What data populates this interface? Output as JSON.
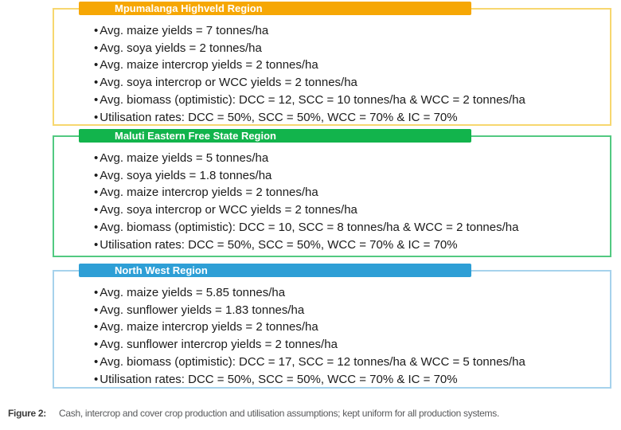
{
  "ui": {
    "bullet_char": "•"
  },
  "figure": {
    "caption_label": "Figure 2:",
    "caption_text": "Cash, intercrop and cover crop production and utilisation assumptions; kept uniform for all production systems."
  },
  "regions": [
    {
      "name": "Mpumalanga Highveld Region",
      "accent_color": "#F6A704",
      "border_color": "#F7D76F",
      "bullets": [
        "Avg. maize yields = 7 tonnes/ha",
        "Avg. soya yields = 2 tonnes/ha",
        "Avg. maize intercrop yields = 2 tonnes/ha",
        "Avg. soya intercrop or WCC yields = 2 tonnes/ha",
        "Avg. biomass (optimistic): DCC = 12, SCC = 10 tonnes/ha & WCC = 2 tonnes/ha",
        "Utilisation rates: DCC = 50%, SCC = 50%, WCC = 70% & IC = 70%"
      ]
    },
    {
      "name": "Maluti Eastern Free State Region",
      "accent_color": "#12B44C",
      "border_color": "#52C981",
      "bullets": [
        "Avg. maize yields = 5 tonnes/ha",
        "Avg. soya yields = 1.8 tonnes/ha",
        "Avg. maize intercrop yields = 2 tonnes/ha",
        "Avg. soya intercrop or WCC yields = 2 tonnes/ha",
        "Avg. biomass (optimistic): DCC = 10, SCC = 8 tonnes/ha & WCC = 2 tonnes/ha",
        "Utilisation rates: DCC = 50%, SCC = 50%, WCC = 70% & IC = 70%"
      ]
    },
    {
      "name": "North West Region",
      "accent_color": "#2E9FD6",
      "border_color": "#A6D2EC",
      "bullets": [
        "Avg. maize yields = 5.85 tonnes/ha",
        "Avg. sunflower yields = 1.83 tonnes/ha",
        "Avg. maize intercrop yields = 2 tonnes/ha",
        "Avg. sunflower intercrop yields = 2 tonnes/ha",
        "Avg. biomass (optimistic): DCC = 17, SCC = 12 tonnes/ha & WCC = 5 tonnes/ha",
        "Utilisation rates: DCC = 50%, SCC = 50%, WCC = 70% & IC = 70%"
      ]
    }
  ]
}
